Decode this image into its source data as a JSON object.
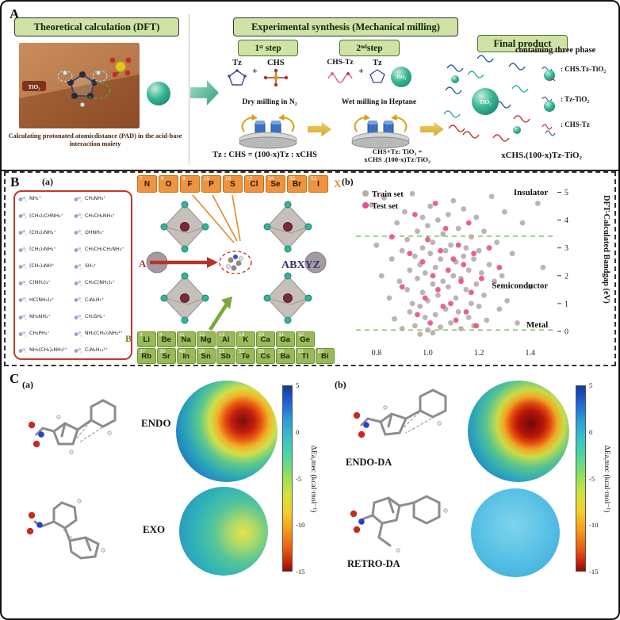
{
  "panelA": {
    "label": "A",
    "left": {
      "header": "Theoretical calculation (DFT)",
      "tio2": "TiO₂",
      "caption": "Calculating protonated atomicdistance (PAD) in the acid-base interaction moiety"
    },
    "right": {
      "header": "Experimental synthesis (Mechanical milling)",
      "step1": {
        "title": "1ˢᵗ step",
        "reagent1": "Tz",
        "plus": "+",
        "reagent2": "CHS",
        "milling": "Dry milling in N₂"
      },
      "step2": {
        "title": "2ⁿᵈstep",
        "reagent1": "CHS-Tz",
        "plus": "+",
        "reagent2": "Tz",
        "tio2": "TiO₂",
        "milling": "Wet milling in Heptane"
      },
      "final": {
        "title": "Final product",
        "tio2": "TiO₂",
        "phase_text": "containing three phase",
        "legend": [
          {
            "label": ": CHS.Tz-TiO₂"
          },
          {
            "label": ": Tz-TiO₂"
          },
          {
            "label": ": CHS-Tz"
          }
        ]
      },
      "formula1": "Tz : CHS = (100-x)Tz : xCHS",
      "formula2_line1": "CHS+Tz: TiO₂ =",
      "formula2_line2": "xCHS .(100-x)Tz:TiO₂",
      "formula3": "xCHS.(100-x)Tz-TiO₂"
    }
  },
  "panelB": {
    "label": "B",
    "sub_a": "(a)",
    "sub_b": "(b)",
    "x_label": "X",
    "a_label": "A",
    "b_label": "B",
    "structure_label": "ABXYZ",
    "cations": [
      "NH₄⁺",
      "CH₃NH₃⁺",
      "(CH₃)₂CHNH₃⁺",
      "CH₃CH₂NH₃⁺",
      "(CH₃)₂NH₂⁺",
      "OHNH₃⁺",
      "(CH₂)₃NH₂⁺",
      "CH₃CH₂CH₂NH₃⁺",
      "(CH₃)₃NH⁺",
      "SH₃⁺",
      "C(NH₂)₃⁺",
      "CH₃C(NH₂)₂⁺",
      "HC(NH₂)₂⁺",
      "C₃N₂H₅⁺",
      "NH₃NH₂⁺",
      "CH₃SH₂⁺",
      "CH₃PH₃⁺",
      "NH₃(CH₂)₂NH₃²⁺",
      "NH₃(CH₂)₃NH₃²⁺",
      "C₄N₂H₁₂²⁺"
    ],
    "x_elements": [
      {
        "num": "7",
        "sym": "N"
      },
      {
        "num": "8",
        "sym": "O"
      },
      {
        "num": "9",
        "sym": "F"
      },
      {
        "num": "15",
        "sym": "P"
      },
      {
        "num": "16",
        "sym": "S"
      },
      {
        "num": "17",
        "sym": "Cl"
      },
      {
        "num": "34",
        "sym": "Se"
      },
      {
        "num": "35",
        "sym": "Br"
      },
      {
        "num": "53",
        "sym": "I"
      }
    ],
    "b_row1": [
      {
        "num": "3",
        "sym": "Li"
      },
      {
        "num": "4",
        "sym": "Be"
      },
      {
        "num": "11",
        "sym": "Na"
      },
      {
        "num": "12",
        "sym": "Mg"
      },
      {
        "num": "13",
        "sym": "Al"
      },
      {
        "num": "19",
        "sym": "K"
      },
      {
        "num": "20",
        "sym": "Ca"
      },
      {
        "num": "31",
        "sym": "Ga"
      },
      {
        "num": "32",
        "sym": "Ge"
      }
    ],
    "b_row2": [
      {
        "num": "37",
        "sym": "Rb"
      },
      {
        "num": "38",
        "sym": "Sr"
      },
      {
        "num": "49",
        "sym": "In"
      },
      {
        "num": "50",
        "sym": "Sn"
      },
      {
        "num": "51",
        "sym": "Sb"
      },
      {
        "num": "52",
        "sym": "Te"
      },
      {
        "num": "55",
        "sym": "Cs"
      },
      {
        "num": "56",
        "sym": "Ba"
      },
      {
        "num": "81",
        "sym": "Tl"
      },
      {
        "num": "83",
        "sym": "Bi"
      }
    ]
  },
  "chart_data": {
    "type": "scatter",
    "title": "",
    "xlabel": "",
    "ylabel": "DFT-Calculated Bandgap (eV)",
    "xlim": [
      0.72,
      1.5
    ],
    "ylim": [
      -0.4,
      5.3
    ],
    "xticks": [
      0.8,
      1.0,
      1.2,
      1.4
    ],
    "yticks": [
      0,
      1,
      2,
      3,
      4,
      5
    ],
    "grid": false,
    "legend_position": "upper left",
    "legend": [
      {
        "name": "Train set",
        "color": "#b7aca4"
      },
      {
        "name": "Test set",
        "color": "#e84f8a"
      }
    ],
    "hlines": [
      {
        "y": 3.42,
        "color": "#6cc24a",
        "style": "dashed"
      },
      {
        "y": 0.05,
        "color": "#6cc24a",
        "style": "dashed"
      }
    ],
    "region_labels": [
      {
        "text": "Insulator",
        "x": 1.47,
        "y": 4.9
      },
      {
        "text": "Semiconductor",
        "x": 1.47,
        "y": 1.55
      },
      {
        "text": "Metal",
        "x": 1.47,
        "y": 0.14
      }
    ],
    "series": [
      {
        "name": "Train set",
        "color": "#b7aca4",
        "points": [
          [
            0.78,
            4.55
          ],
          [
            0.8,
            3.1
          ],
          [
            0.82,
            2.0
          ],
          [
            0.83,
            4.8
          ],
          [
            0.85,
            1.2
          ],
          [
            0.86,
            2.6
          ],
          [
            0.87,
            0.45
          ],
          [
            0.88,
            3.9
          ],
          [
            0.89,
            1.8
          ],
          [
            0.9,
            0.1
          ],
          [
            0.9,
            2.9
          ],
          [
            0.91,
            4.3
          ],
          [
            0.92,
            1.5
          ],
          [
            0.92,
            3.3
          ],
          [
            0.93,
            0.7
          ],
          [
            0.93,
            2.2
          ],
          [
            0.94,
            4.95
          ],
          [
            0.94,
            1.0
          ],
          [
            0.95,
            2.7
          ],
          [
            0.95,
            0.2
          ],
          [
            0.96,
            3.6
          ],
          [
            0.96,
            1.9
          ],
          [
            0.97,
            0.9
          ],
          [
            0.97,
            2.4
          ],
          [
            0.97,
            -0.1
          ],
          [
            0.98,
            4.1
          ],
          [
            0.98,
            1.4
          ],
          [
            0.98,
            3.0
          ],
          [
            0.99,
            0.5
          ],
          [
            0.99,
            2.1
          ],
          [
            1.0,
            3.8
          ],
          [
            1.0,
            1.1
          ],
          [
            1.0,
            0.05
          ],
          [
            1.01,
            2.8
          ],
          [
            1.01,
            4.5
          ],
          [
            1.02,
            1.7
          ],
          [
            1.02,
            3.2
          ],
          [
            1.02,
            -0.05
          ],
          [
            1.03,
            0.6
          ],
          [
            1.03,
            2.3
          ],
          [
            1.04,
            1.3
          ],
          [
            1.04,
            4.0
          ],
          [
            1.05,
            2.6
          ],
          [
            1.05,
            0.15
          ],
          [
            1.06,
            3.5
          ],
          [
            1.06,
            1.8
          ],
          [
            1.07,
            0.8
          ],
          [
            1.07,
            2.9
          ],
          [
            1.08,
            4.2
          ],
          [
            1.08,
            1.6
          ],
          [
            1.09,
            3.1
          ],
          [
            1.09,
            0.3
          ],
          [
            1.1,
            2.0
          ],
          [
            1.1,
            4.7
          ],
          [
            1.11,
            1.2
          ],
          [
            1.11,
            2.5
          ],
          [
            1.12,
            0.7
          ],
          [
            1.12,
            3.7
          ],
          [
            1.13,
            1.9
          ],
          [
            1.13,
            0.1
          ],
          [
            1.14,
            2.7
          ],
          [
            1.14,
            4.4
          ],
          [
            1.15,
            1.5
          ],
          [
            1.15,
            3.0
          ],
          [
            1.16,
            0.5
          ],
          [
            1.16,
            2.2
          ],
          [
            1.17,
            1.0
          ],
          [
            1.17,
            3.4
          ],
          [
            1.18,
            2.6
          ],
          [
            1.18,
            0.2
          ],
          [
            1.19,
            1.7
          ],
          [
            1.19,
            4.1
          ],
          [
            1.2,
            2.9
          ],
          [
            1.2,
            0.9
          ],
          [
            1.21,
            2.1
          ],
          [
            1.22,
            3.6
          ],
          [
            1.22,
            1.3
          ],
          [
            1.23,
            0.4
          ],
          [
            1.24,
            2.4
          ],
          [
            1.25,
            4.85
          ],
          [
            1.26,
            1.8
          ],
          [
            1.27,
            3.2
          ],
          [
            1.28,
            0.8
          ],
          [
            1.29,
            2.0
          ],
          [
            1.3,
            4.3
          ],
          [
            1.31,
            1.1
          ],
          [
            1.33,
            2.8
          ],
          [
            1.35,
            0.3
          ],
          [
            1.37,
            3.9
          ],
          [
            1.4,
            1.6
          ],
          [
            1.43,
            4.6
          ],
          [
            1.45,
            2.3
          ]
        ]
      },
      {
        "name": "Test set",
        "color": "#e84f8a",
        "points": [
          [
            0.86,
            3.4
          ],
          [
            0.9,
            1.6
          ],
          [
            0.93,
            2.8
          ],
          [
            0.95,
            4.2
          ],
          [
            0.96,
            0.6
          ],
          [
            0.98,
            2.5
          ],
          [
            0.99,
            1.2
          ],
          [
            1.0,
            3.3
          ],
          [
            1.01,
            0.3
          ],
          [
            1.02,
            2.0
          ],
          [
            1.03,
            4.6
          ],
          [
            1.04,
            1.5
          ],
          [
            1.05,
            2.9
          ],
          [
            1.06,
            0.9
          ],
          [
            1.07,
            3.7
          ],
          [
            1.08,
            2.2
          ],
          [
            1.09,
            1.0
          ],
          [
            1.1,
            2.6
          ],
          [
            1.11,
            0.4
          ],
          [
            1.12,
            3.1
          ],
          [
            1.13,
            1.8
          ],
          [
            1.14,
            2.4
          ],
          [
            1.15,
            0.7
          ],
          [
            1.16,
            3.9
          ],
          [
            1.17,
            1.4
          ],
          [
            1.18,
            2.8
          ],
          [
            1.19,
            0.2
          ],
          [
            1.21,
            1.9
          ],
          [
            1.24,
            3.0
          ],
          [
            1.28,
            2.3
          ]
        ]
      }
    ]
  },
  "panelC": {
    "label": "C",
    "sub_a": "(a)",
    "sub_b": "(b)",
    "endo": "ENDO",
    "exo": "EXO",
    "endo_da": "ENDO-DA",
    "retro_da": "RETRO-DA",
    "colorbar": {
      "label": "ΔEa,mec (kcal·mol⁻¹)",
      "ticks": [
        5,
        0,
        -5,
        -10,
        -15
      ]
    }
  }
}
